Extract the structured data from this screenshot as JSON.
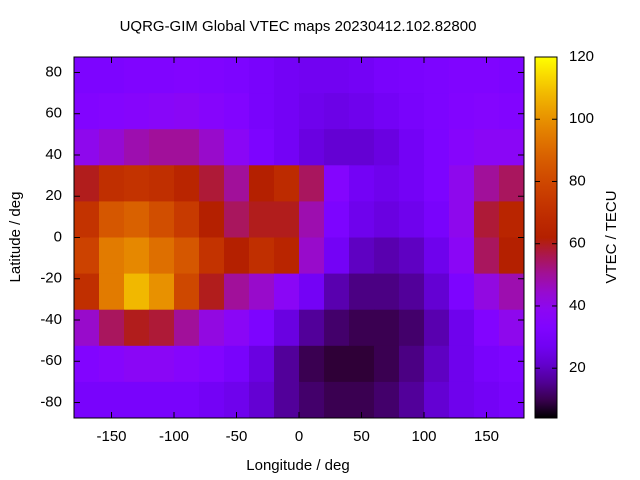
{
  "chart_data": {
    "type": "heatmap",
    "title": "UQRG-GIM Global VTEC maps 20230412.102.82800",
    "x_label": "Longitude / deg",
    "y_label": "Latitude / deg",
    "colorbar_label": "VTEC / TECU",
    "xlim": [
      -180,
      180
    ],
    "ylim": [
      -87.5,
      87.5
    ],
    "xticks": [
      -150,
      -100,
      -50,
      0,
      50,
      100,
      150
    ],
    "yticks": [
      -80,
      -60,
      -40,
      -20,
      0,
      20,
      40,
      60,
      80
    ],
    "clim": [
      4,
      120
    ],
    "cticks": [
      20,
      40,
      60,
      80,
      100,
      120
    ],
    "values": [
      [
        32,
        32,
        33,
        33,
        34,
        33,
        32,
        30,
        28,
        27,
        27,
        28,
        30,
        31,
        32,
        33,
        33,
        32
      ],
      [
        34,
        35,
        36,
        37,
        38,
        36,
        34,
        30,
        28,
        26,
        25,
        26,
        28,
        30,
        32,
        34,
        35,
        34
      ],
      [
        40,
        44,
        48,
        50,
        50,
        45,
        38,
        32,
        28,
        24,
        22,
        22,
        24,
        28,
        32,
        36,
        38,
        38
      ],
      [
        60,
        70,
        72,
        70,
        65,
        58,
        50,
        62,
        68,
        55,
        35,
        28,
        26,
        28,
        32,
        40,
        50,
        55
      ],
      [
        72,
        85,
        88,
        82,
        75,
        62,
        55,
        60,
        60,
        48,
        32,
        26,
        24,
        26,
        30,
        40,
        58,
        65
      ],
      [
        78,
        95,
        98,
        92,
        85,
        72,
        62,
        70,
        65,
        45,
        28,
        20,
        18,
        20,
        26,
        38,
        55,
        62
      ],
      [
        70,
        95,
        108,
        100,
        80,
        60,
        50,
        45,
        38,
        28,
        18,
        14,
        14,
        16,
        22,
        32,
        42,
        48
      ],
      [
        45,
        55,
        60,
        58,
        50,
        42,
        38,
        32,
        24,
        16,
        12,
        10,
        10,
        12,
        18,
        26,
        34,
        40
      ],
      [
        34,
        36,
        38,
        38,
        36,
        34,
        30,
        24,
        16,
        10,
        8,
        8,
        10,
        14,
        20,
        26,
        30,
        32
      ],
      [
        30,
        30,
        30,
        30,
        30,
        28,
        26,
        22,
        16,
        12,
        10,
        10,
        12,
        16,
        22,
        26,
        28,
        30
      ]
    ]
  }
}
